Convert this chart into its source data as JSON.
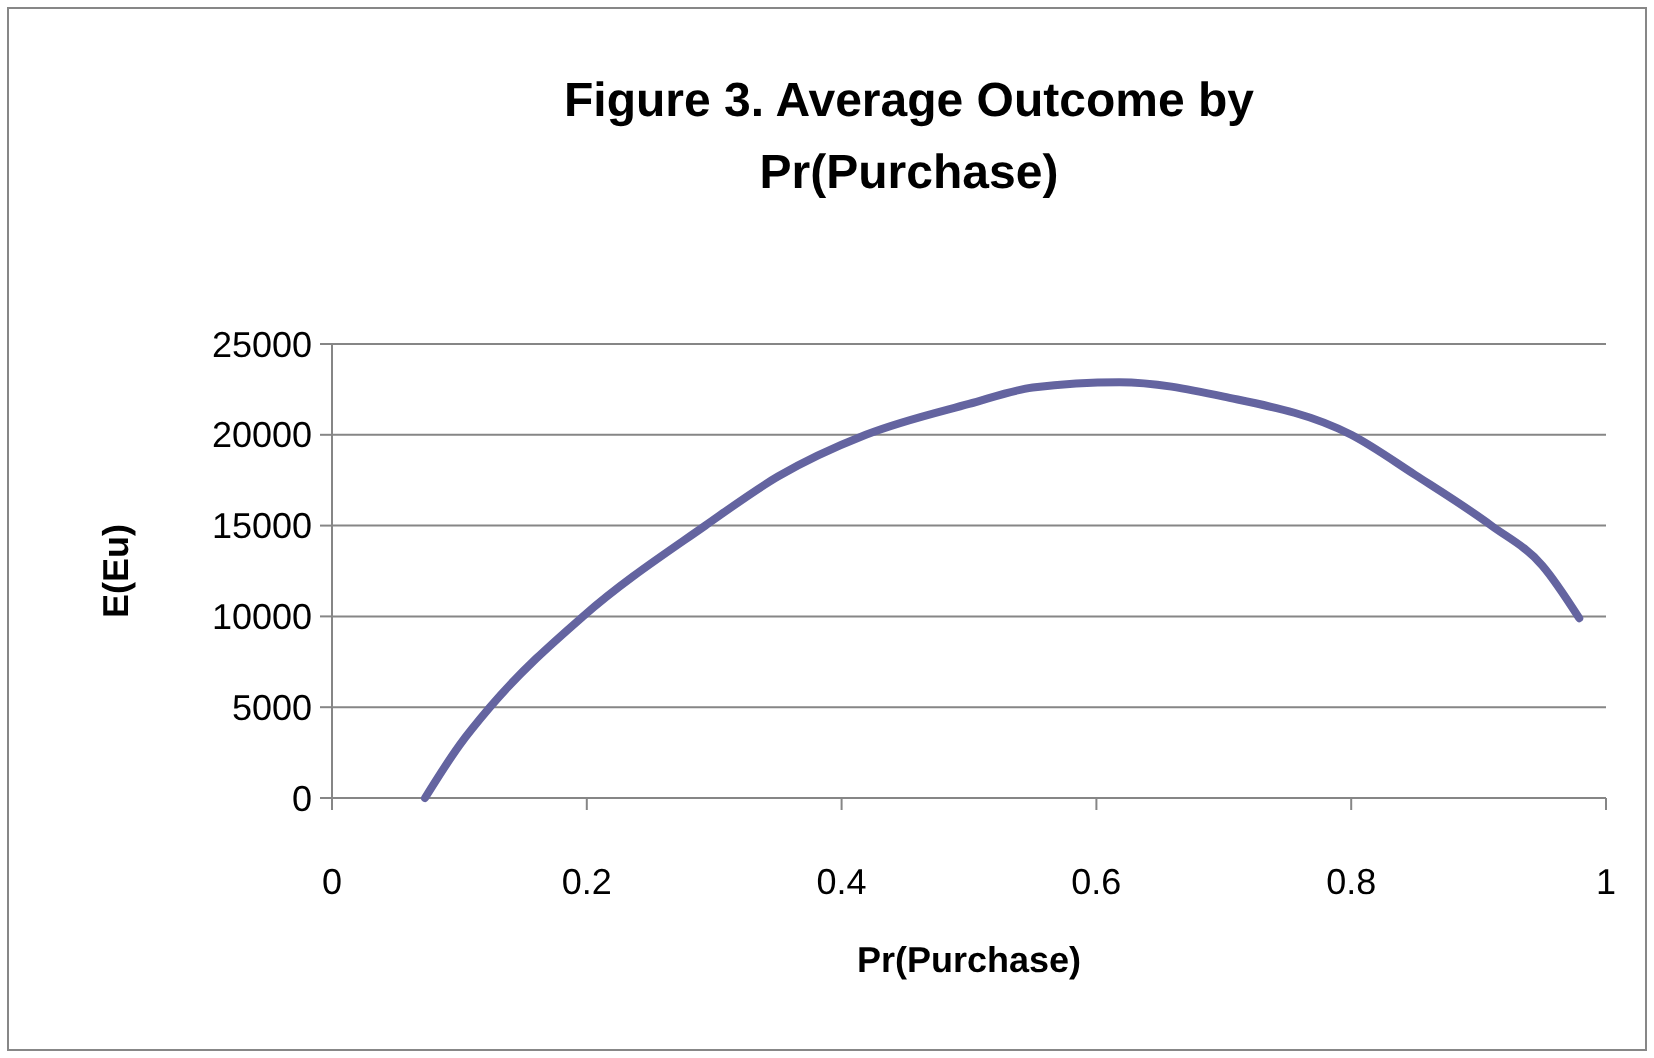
{
  "chart_data": {
    "type": "line",
    "title": "Figure 3. Average Outcome by Pr(Purchase)",
    "xlabel": "Pr(Purchase)",
    "ylabel": "E(Eu)",
    "x": [
      0.073,
      0.1,
      0.124,
      0.197,
      0.293,
      0.35,
      0.419,
      0.5,
      0.55,
      0.618,
      0.7,
      0.8,
      0.85,
      0.91,
      0.95,
      0.979
    ],
    "series": [
      {
        "color": "#6464a0",
        "values": [
          0,
          2900,
          5000,
          10000,
          15000,
          17700,
          20000,
          21700,
          22600,
          22900,
          22100,
          20000,
          17800,
          15000,
          12800,
          9900
        ]
      }
    ],
    "xlim": [
      0,
      1
    ],
    "xticks": [
      0,
      0.2,
      0.4,
      0.6,
      0.8,
      1
    ],
    "ylim": [
      0,
      25000
    ],
    "yticks": [
      0,
      5000,
      10000,
      15000,
      20000,
      25000
    ],
    "grid": "y",
    "line_style": "solid",
    "marker": "none"
  }
}
